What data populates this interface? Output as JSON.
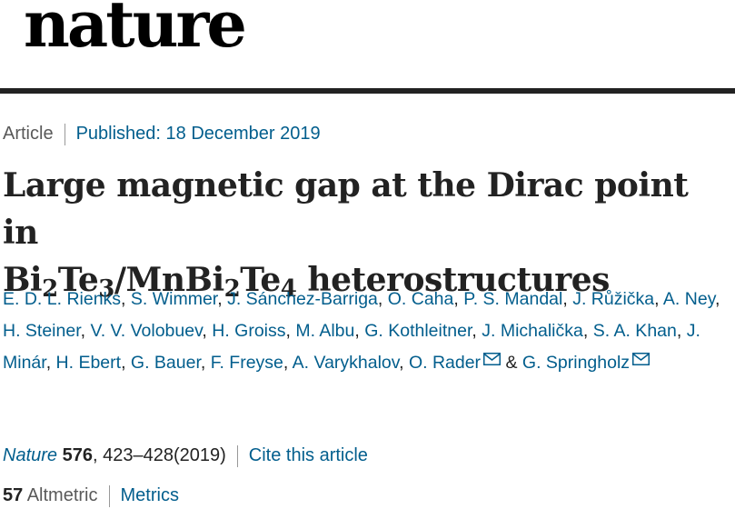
{
  "header": {
    "logo_text": "nature"
  },
  "article_meta": {
    "type": "Article",
    "published": "Published: 18 December 2019"
  },
  "title": {
    "line1": "Large magnetic gap at the Dirac point in",
    "part_a": "Bi",
    "sub_a": "2",
    "part_b": "Te",
    "sub_b": "3",
    "part_c": "/MnBi",
    "sub_c": "2",
    "part_d": "Te",
    "sub_d": "4",
    "part_e": " heterostructures"
  },
  "authors": {
    "list": [
      "E. D. L. Rienks",
      "S. Wimmer",
      "J. Sánchez-Barriga",
      "O. Caha",
      "P. S. Mandal",
      "J. Růžička",
      "A. Ney",
      "H. Steiner",
      "V. V. Volobuev",
      "H. Groiss",
      "M. Albu",
      "G. Kothleitner",
      "J. Michalička",
      "S. A. Khan",
      "J. Minár",
      "H. Ebert",
      "G. Bauer",
      "F. Freyse",
      "A. Varykhalov",
      "O. Rader"
    ],
    "separator": ", ",
    "conjunction": " & ",
    "last": "G. Springholz"
  },
  "citation": {
    "journal": "Nature",
    "volume": "576",
    "pages_year": ", 423–428(2019)",
    "cite_link": "Cite this article"
  },
  "metrics": {
    "altmetric_count": "57",
    "altmetric_label": "Altmetric",
    "metrics_link": "Metrics"
  },
  "colors": {
    "link": "#025e8d",
    "text": "#222222",
    "muted": "#595959",
    "rule": "#222222"
  }
}
